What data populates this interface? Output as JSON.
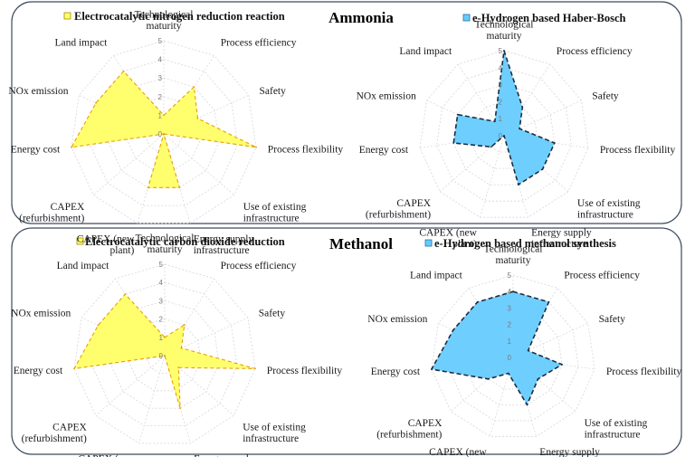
{
  "panels": [
    {
      "title": "Ammonia"
    },
    {
      "title": "Methanol"
    }
  ],
  "axes": [
    [
      "Technological",
      "maturity"
    ],
    [
      "Process efficiency"
    ],
    [
      "Safety"
    ],
    [
      "Process flexibility"
    ],
    [
      "Use of existing",
      "infrastructure"
    ],
    [
      "Energy supply",
      "infrastructure"
    ],
    [
      "CAPEX (new",
      "plant)"
    ],
    [
      "CAPEX",
      "(refurbishment)"
    ],
    [
      "Energy cost"
    ],
    [
      "NOx emission"
    ],
    [
      "Land impact"
    ]
  ],
  "ticks": [
    "0",
    "1",
    "2",
    "3",
    "4",
    "5"
  ],
  "colors": {
    "yellow": "#ffff66",
    "blue": "#66ccff"
  },
  "chart_data": [
    {
      "type": "radar",
      "title": "Electrocatalytic nitrogen reduction reaction",
      "color": "#ffff66",
      "icon": "yellow-square-icon",
      "rlim": [
        0,
        5
      ],
      "values": [
        1,
        3,
        2,
        5,
        0,
        3,
        3,
        0,
        5,
        4,
        4
      ]
    },
    {
      "type": "radar",
      "title": "e-Hydrogen based Haber-Bosch",
      "color": "#66ccff",
      "icon": "blue-square-icon",
      "rlim": [
        0,
        5
      ],
      "values": [
        5,
        2,
        1,
        3,
        3,
        3,
        0,
        1,
        3,
        3,
        1
      ]
    },
    {
      "type": "radar",
      "title": "Electrocatalytic carbon dioxide reduction",
      "color": "#ffff66",
      "icon": "yellow-square-icon",
      "rlim": [
        0,
        5
      ],
      "values": [
        1,
        2,
        1,
        5,
        1,
        3,
        0,
        0,
        5,
        4,
        4
      ]
    },
    {
      "type": "radar",
      "title": "e-Hydrogen based methanol synthesis",
      "color": "#66ccff",
      "icon": "blue-square-icon",
      "rlim": [
        0,
        5
      ],
      "values": [
        4,
        4,
        1,
        3,
        2,
        3,
        1,
        2,
        5,
        4,
        4
      ]
    }
  ]
}
